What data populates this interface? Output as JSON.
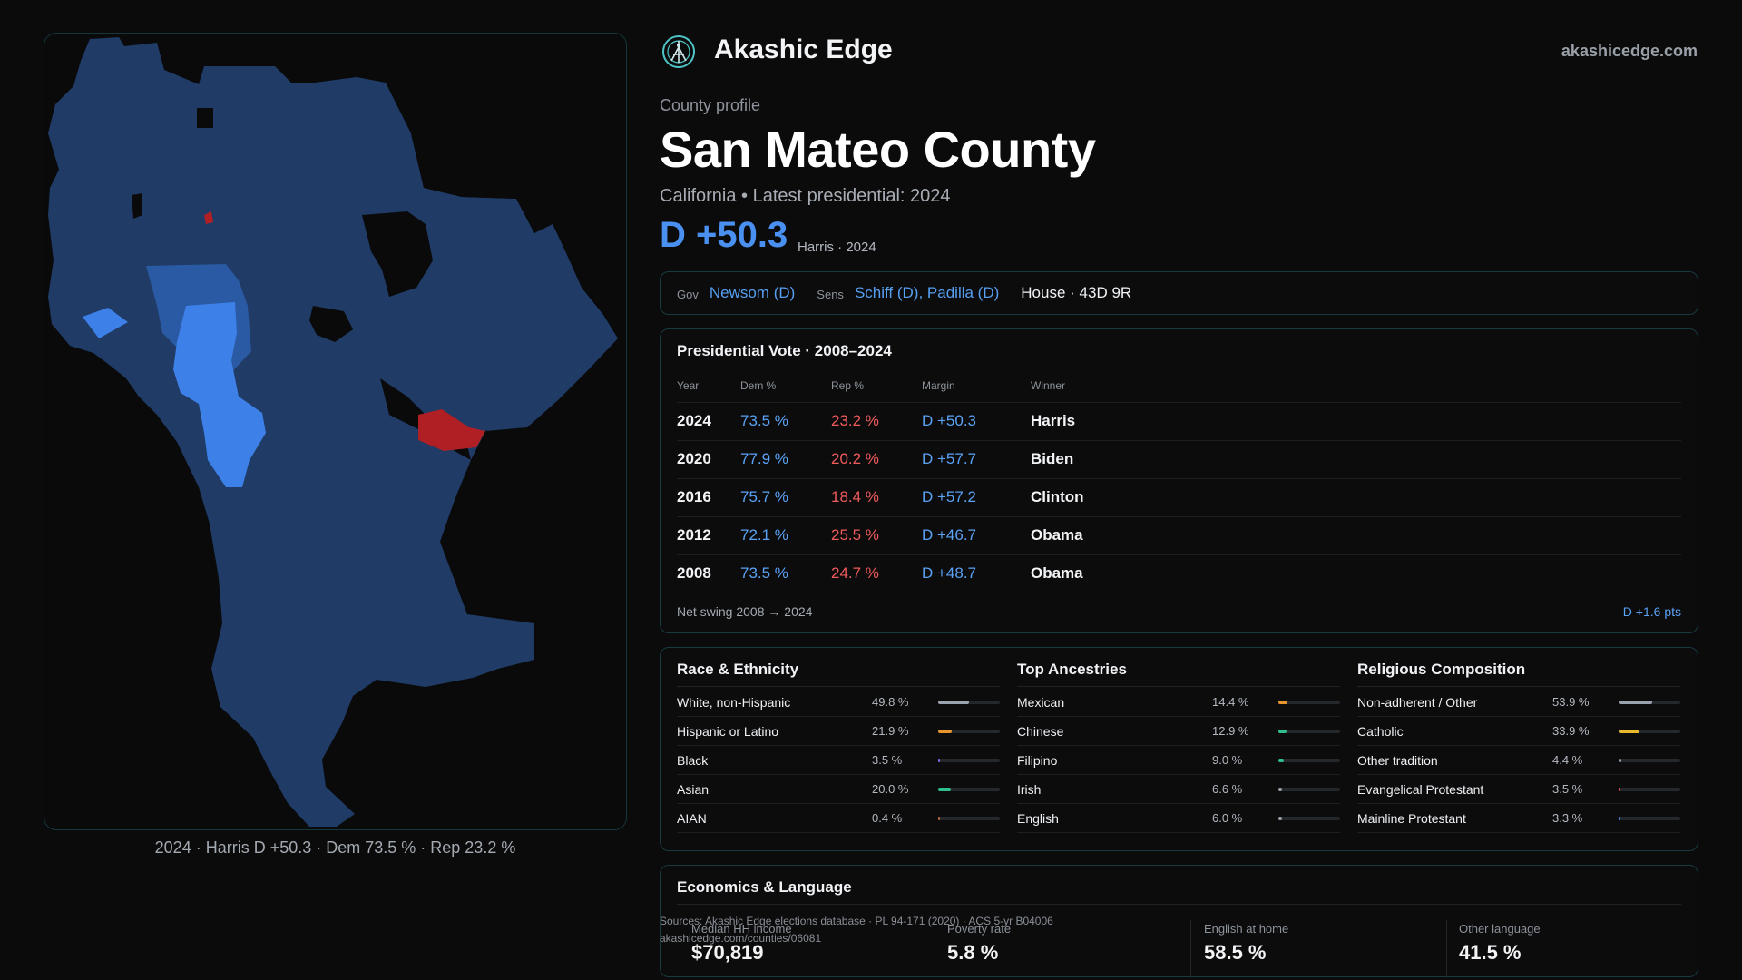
{
  "header": {
    "brand": "Akashic Edge",
    "site": "akashicedge.com"
  },
  "profile": {
    "eyebrow": "County profile",
    "county": "San Mateo County",
    "subtitle": "California • Latest presidential: 2024",
    "margin": "D +50.3",
    "margin_note": "Harris · 2024"
  },
  "officials": {
    "gov_label": "Gov",
    "gov": "Newsom (D)",
    "sens_label": "Sens",
    "sens": "Schiff (D), Padilla (D)",
    "house": "House · 43D 9R"
  },
  "presidential": {
    "title": "Presidential Vote · 2008–2024",
    "headers": [
      "Year",
      "Dem %",
      "Rep %",
      "Margin",
      "Winner"
    ],
    "rows": [
      {
        "year": "2024",
        "dem": "73.5 %",
        "rep": "23.2 %",
        "margin": "D +50.3",
        "winner": "Harris"
      },
      {
        "year": "2020",
        "dem": "77.9 %",
        "rep": "20.2 %",
        "margin": "D +57.7",
        "winner": "Biden"
      },
      {
        "year": "2016",
        "dem": "75.7 %",
        "rep": "18.4 %",
        "margin": "D +57.2",
        "winner": "Clinton"
      },
      {
        "year": "2012",
        "dem": "72.1 %",
        "rep": "25.5 %",
        "margin": "D +46.7",
        "winner": "Obama"
      },
      {
        "year": "2008",
        "dem": "73.5 %",
        "rep": "24.7 %",
        "margin": "D +48.7",
        "winner": "Obama"
      }
    ],
    "swing_label": "Net swing 2008 → 2024",
    "swing_value": "D +1.6 pts"
  },
  "demographics": [
    {
      "title": "Race & Ethnicity",
      "rows": [
        {
          "name": "White, non-Hispanic",
          "pct": "49.8 %",
          "value": 49.8,
          "color": "#9aa3ad"
        },
        {
          "name": "Hispanic or Latino",
          "pct": "21.9 %",
          "value": 21.9,
          "color": "#e8952d"
        },
        {
          "name": "Black",
          "pct": "3.5 %",
          "value": 3.5,
          "color": "#7c6cf0"
        },
        {
          "name": "Asian",
          "pct": "20.0 %",
          "value": 20.0,
          "color": "#2fbf8f"
        },
        {
          "name": "AIAN",
          "pct": "0.4 %",
          "value": 0.4,
          "color": "#c06a3a"
        }
      ]
    },
    {
      "title": "Top Ancestries",
      "rows": [
        {
          "name": "Mexican",
          "pct": "14.4 %",
          "value": 14.4,
          "color": "#e8952d"
        },
        {
          "name": "Chinese",
          "pct": "12.9 %",
          "value": 12.9,
          "color": "#2fbf8f"
        },
        {
          "name": "Filipino",
          "pct": "9.0 %",
          "value": 9.0,
          "color": "#2fbf8f"
        },
        {
          "name": "Irish",
          "pct": "6.6 %",
          "value": 6.6,
          "color": "#9aa3ad"
        },
        {
          "name": "English",
          "pct": "6.0 %",
          "value": 6.0,
          "color": "#9aa3ad"
        }
      ]
    },
    {
      "title": "Religious Composition",
      "rows": [
        {
          "name": "Non-adherent / Other",
          "pct": "53.9 %",
          "value": 53.9,
          "color": "#9aa3ad"
        },
        {
          "name": "Catholic",
          "pct": "33.9 %",
          "value": 33.9,
          "color": "#e8b92d"
        },
        {
          "name": "Other tradition",
          "pct": "4.4 %",
          "value": 4.4,
          "color": "#9aa3ad"
        },
        {
          "name": "Evangelical Protestant",
          "pct": "3.5 %",
          "value": 3.5,
          "color": "#e05050"
        },
        {
          "name": "Mainline Protestant",
          "pct": "3.3 %",
          "value": 3.3,
          "color": "#4a90f0"
        }
      ]
    }
  ],
  "economics": {
    "title": "Economics & Language",
    "metrics": [
      {
        "label": "Median HH income",
        "value": "$70,819"
      },
      {
        "label": "Poverty rate",
        "value": "5.8 %"
      },
      {
        "label": "English at home",
        "value": "58.5 %"
      },
      {
        "label": "Other language",
        "value": "41.5 %"
      }
    ]
  },
  "sources": {
    "line1": "Sources: Akashic Edge elections database · PL 94-171 (2020) · ACS 5-yr B04006",
    "line2": "akashicedge.com/counties/06081"
  },
  "map": {
    "caption": "2024 · Harris D +50.3 · Dem 73.5 % · Rep 23.2 %",
    "colors": {
      "dem_base": "#1f3b66",
      "dem_strong": "#3d80e8",
      "dem_mid": "#2a5aa3",
      "rep": "#b01f24"
    }
  }
}
